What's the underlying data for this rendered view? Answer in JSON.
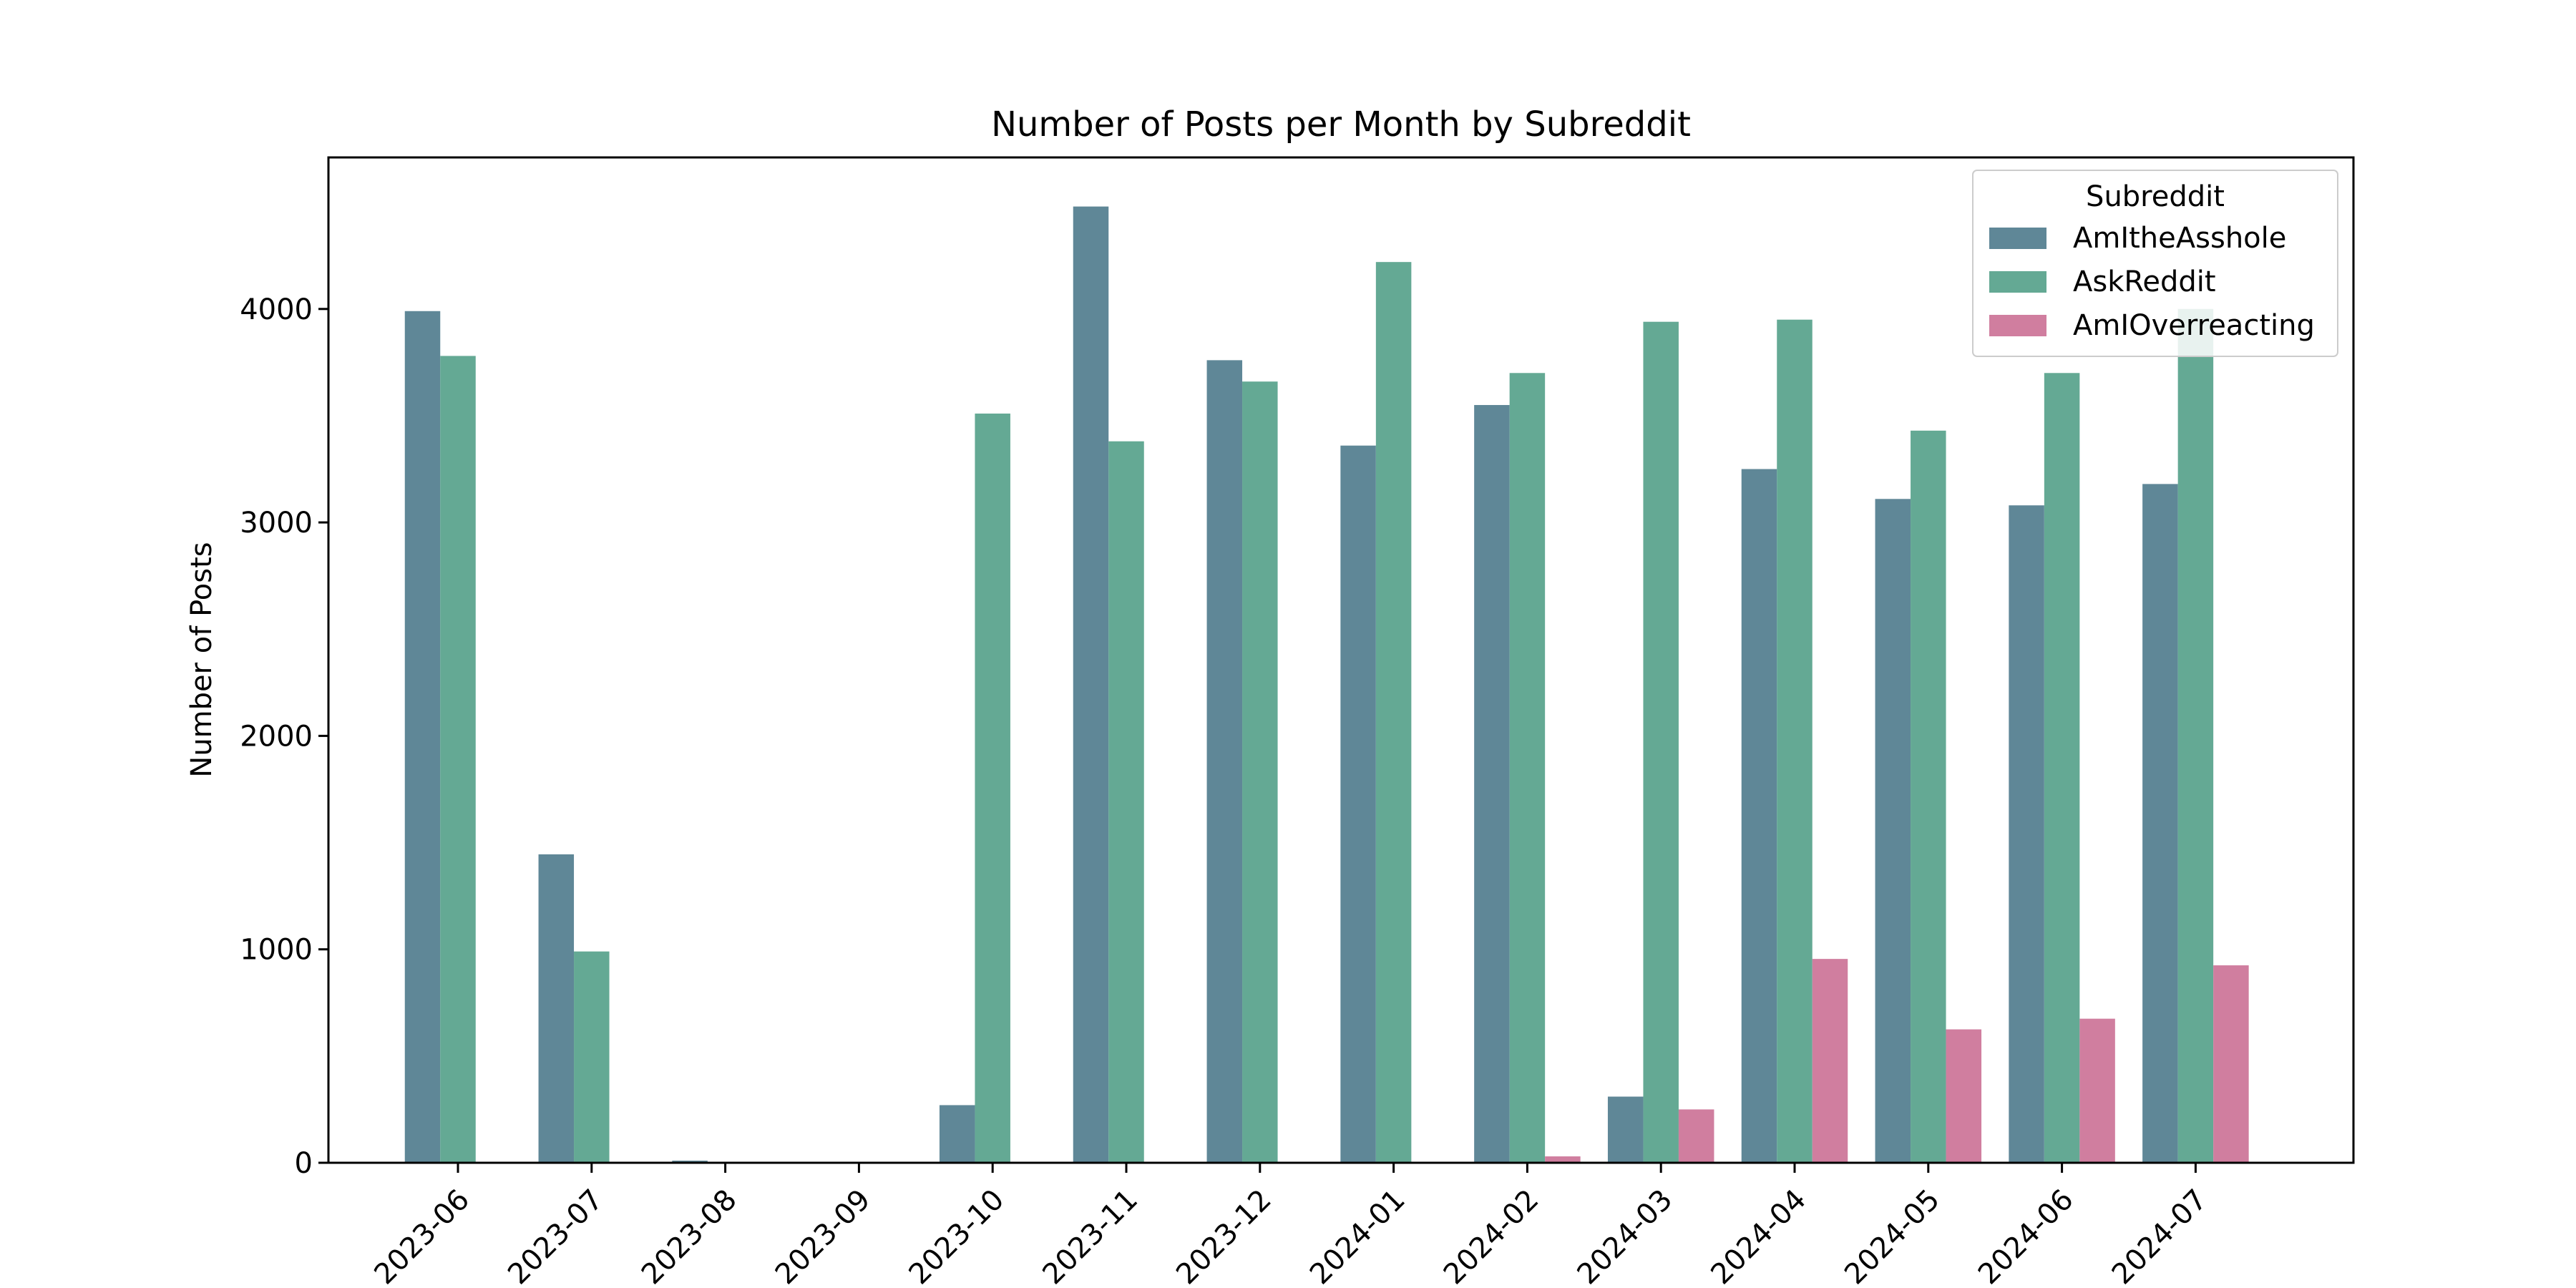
{
  "chart_data": {
    "type": "bar",
    "title": "Number of Posts per Month by Subreddit",
    "xlabel": "",
    "ylabel": "Number of Posts",
    "categories": [
      "2023-06",
      "2023-07",
      "2023-08",
      "2023-09",
      "2023-10",
      "2023-11",
      "2023-12",
      "2024-01",
      "2024-02",
      "2024-03",
      "2024-04",
      "2024-05",
      "2024-06",
      "2024-07"
    ],
    "series": [
      {
        "name": "AmItheAsshole",
        "color": "#5f8797",
        "values": [
          3990,
          1445,
          10,
          0,
          270,
          4480,
          3760,
          3360,
          3550,
          310,
          3250,
          3110,
          3080,
          3180
        ]
      },
      {
        "name": "AskReddit",
        "color": "#64a994",
        "values": [
          3780,
          990,
          5,
          0,
          3510,
          3380,
          3660,
          4220,
          3700,
          3940,
          3950,
          3430,
          3700,
          4000
        ]
      },
      {
        "name": "AmIOverreacting",
        "color": "#d07e9f",
        "values": [
          0,
          0,
          0,
          0,
          0,
          0,
          0,
          0,
          30,
          250,
          955,
          625,
          675,
          925
        ]
      }
    ],
    "ylim": [
      0,
      4710
    ],
    "yticks": [
      0,
      1000,
      2000,
      3000,
      4000
    ],
    "grid": false,
    "legend": {
      "title": "Subreddit",
      "placement": "top-right"
    }
  }
}
